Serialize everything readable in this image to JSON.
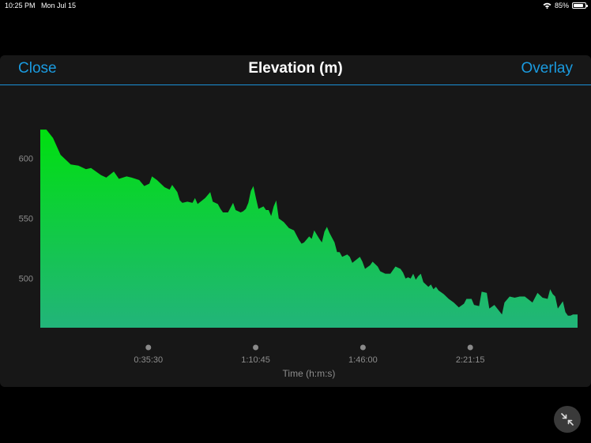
{
  "status_bar": {
    "time": "10:25 PM",
    "date": "Mon Jul 15",
    "battery": "85%",
    "battery_level": 0.85,
    "wifi_icon": "wifi-icon"
  },
  "header": {
    "close_label": "Close",
    "title": "Elevation (m)",
    "overlay_label": "Overlay"
  },
  "colors": {
    "accent": "#1a9be0",
    "fill_top": "#00e00f",
    "fill_bottom": "#22b47a",
    "panel": "#171717"
  },
  "collapse_icon": "collapse-arrows-icon",
  "chart_data": {
    "type": "area",
    "title": "Elevation (m)",
    "xlabel": "Time (h:m:s)",
    "ylabel": "",
    "x_ticks": [
      {
        "label": "0:35:30",
        "seconds": 2130
      },
      {
        "label": "1:10:45",
        "seconds": 4245
      },
      {
        "label": "1:46:00",
        "seconds": 6360
      },
      {
        "label": "2:21:15",
        "seconds": 8475
      }
    ],
    "y_ticks": [
      600,
      550,
      500
    ],
    "xlim": [
      0,
      10590
    ],
    "ylim": [
      459,
      630
    ],
    "grid": false,
    "legend": "none",
    "series": [
      {
        "x": [
          0,
          120,
          250,
          400,
          600,
          750,
          900,
          1000,
          1200,
          1300,
          1450,
          1550,
          1700,
          1800,
          1950,
          2050,
          2150,
          2200,
          2300,
          2450,
          2550,
          2600,
          2700,
          2750,
          2800,
          2900,
          3000,
          3050,
          3100,
          3250,
          3350,
          3400,
          3500,
          3550,
          3600,
          3700,
          3800,
          3850,
          3950,
          4000,
          4050,
          4100,
          4150,
          4200,
          4250,
          4300,
          4400,
          4450,
          4500,
          4550,
          4600,
          4650,
          4700,
          4800,
          4900,
          5000,
          5100,
          5150,
          5200,
          5300,
          5350,
          5400,
          5500,
          5550,
          5600,
          5650,
          5700,
          5800,
          5850,
          5900,
          5950,
          6050,
          6100,
          6150,
          6300,
          6350,
          6400,
          6500,
          6550,
          6650,
          6700,
          6800,
          6900,
          7000,
          7100,
          7150,
          7200,
          7250,
          7300,
          7350,
          7400,
          7450,
          7500,
          7550,
          7650,
          7700,
          7750,
          7800,
          7850,
          7950,
          8050,
          8150,
          8250,
          8350,
          8400,
          8500,
          8550,
          8650,
          8700,
          8800,
          8850,
          8950,
          9100,
          9150,
          9250,
          9350,
          9450,
          9550,
          9700,
          9800,
          9900,
          10000,
          10050,
          10100,
          10150,
          10200,
          10300,
          10350,
          10400,
          10450,
          10500,
          10590
        ],
        "y": [
          624,
          624,
          617,
          603,
          595,
          594,
          591,
          592,
          586,
          584,
          589,
          583,
          585,
          584,
          582,
          577,
          579,
          585,
          582,
          576,
          574,
          578,
          572,
          565,
          563,
          564,
          563,
          567,
          562,
          567,
          572,
          564,
          562,
          558,
          555,
          555,
          563,
          557,
          555,
          556,
          558,
          563,
          573,
          577,
          567,
          558,
          560,
          557,
          557,
          552,
          560,
          565,
          550,
          547,
          542,
          540,
          532,
          529,
          530,
          535,
          533,
          540,
          533,
          530,
          539,
          543,
          538,
          530,
          522,
          522,
          518,
          520,
          518,
          513,
          518,
          514,
          508,
          511,
          514,
          510,
          506,
          504,
          504,
          510,
          508,
          505,
          500,
          501,
          500,
          504,
          499,
          502,
          504,
          497,
          493,
          495,
          491,
          493,
          490,
          487,
          483,
          480,
          476,
          479,
          483,
          483,
          478,
          477,
          489,
          488,
          475,
          478,
          470,
          480,
          485,
          484,
          485,
          485,
          480,
          488,
          484,
          483,
          491,
          487,
          485,
          475,
          481,
          472,
          469,
          469,
          470,
          470
        ]
      }
    ]
  }
}
